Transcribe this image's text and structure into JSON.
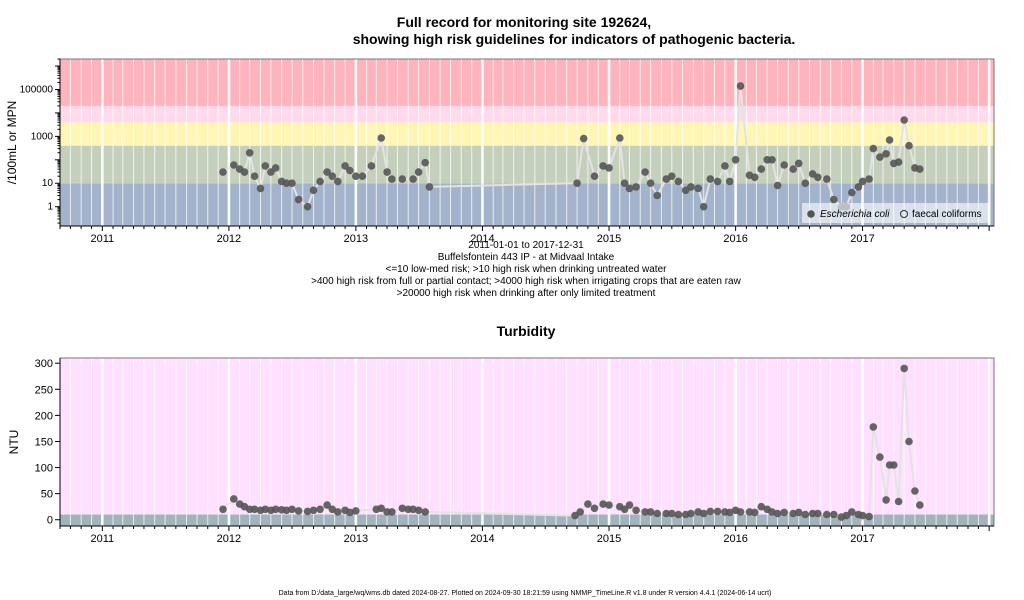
{
  "chart_data": [
    {
      "type": "scatter",
      "title": [
        "Full record for monitoring site 192624,",
        "showing high risk guidelines for indicators of pathogenic bacteria."
      ],
      "ylabel": "/100mL or MPN",
      "y_scale": "log",
      "x_range": [
        "2010-09-01",
        "2018-01-15"
      ],
      "ylim": [
        0.15,
        2000000
      ],
      "x_ticks": [
        "2011",
        "2012",
        "2013",
        "2014",
        "2015",
        "2016",
        "2017"
      ],
      "y_ticks": [
        "1",
        "10",
        "1000",
        "100000"
      ],
      "risk_bands": [
        {
          "from": 0.15,
          "to": 10,
          "color": "#a3b3cc"
        },
        {
          "from": 10,
          "to": 400,
          "color": "#c5d0bc"
        },
        {
          "from": 400,
          "to": 4000,
          "color": "#fff5b5"
        },
        {
          "from": 4000,
          "to": 20000,
          "color": "#ffd9ec"
        },
        {
          "from": 20000,
          "to": 2000000,
          "color": "#ffb3bd"
        }
      ],
      "legend": [
        "Escherichia coli",
        "faecal coliforms"
      ],
      "legend_placement": "bottom-right",
      "caption": [
        "2011-01-01 to 2017-12-31",
        "Buffelsfontein 443 IP - at Midvaal Intake",
        "<=10 low-med risk; >10 high risk when drinking untreated water",
        ">400 high risk from full or partial contact; >4000 high risk when irrigating crops that are eaten raw",
        ">20000 high risk when drinking after only limited treatment"
      ],
      "series": [
        {
          "name": "Escherichia coli",
          "color": "#555555",
          "points": [
            [
              "2011-12-15",
              30
            ],
            [
              "2012-01-15",
              60
            ],
            [
              "2012-02-01",
              40
            ],
            [
              "2012-02-15",
              30
            ],
            [
              "2012-03-01",
              200
            ],
            [
              "2012-03-15",
              20
            ],
            [
              "2012-04-01",
              6
            ],
            [
              "2012-04-15",
              55
            ],
            [
              "2012-05-01",
              30
            ],
            [
              "2012-05-15",
              45
            ],
            [
              "2012-06-01",
              12
            ],
            [
              "2012-06-15",
              10
            ],
            [
              "2012-07-01",
              10
            ],
            [
              "2012-07-20",
              2
            ],
            [
              "2012-08-15",
              1
            ],
            [
              "2012-09-01",
              5
            ],
            [
              "2012-09-20",
              12
            ],
            [
              "2012-10-10",
              30
            ],
            [
              "2012-10-25",
              20
            ],
            [
              "2012-11-10",
              12
            ],
            [
              "2012-12-01",
              55
            ],
            [
              "2012-12-15",
              35
            ],
            [
              "2013-01-01",
              20
            ],
            [
              "2013-01-20",
              20
            ],
            [
              "2013-02-15",
              55
            ],
            [
              "2013-03-15",
              850
            ],
            [
              "2013-04-01",
              30
            ],
            [
              "2013-04-15",
              15
            ],
            [
              "2013-05-15",
              15
            ],
            [
              "2013-06-15",
              15
            ],
            [
              "2013-07-01",
              30
            ],
            [
              "2013-07-20",
              75
            ],
            [
              "2013-08-01",
              7
            ],
            [
              "2014-10-01",
              10
            ],
            [
              "2014-10-20",
              800
            ],
            [
              "2014-11-20",
              20
            ],
            [
              "2014-12-15",
              55
            ],
            [
              "2015-01-01",
              45
            ],
            [
              "2015-02-01",
              850
            ],
            [
              "2015-02-15",
              10
            ],
            [
              "2015-03-01",
              6
            ],
            [
              "2015-03-20",
              7
            ],
            [
              "2015-04-15",
              30
            ],
            [
              "2015-05-01",
              10
            ],
            [
              "2015-05-20",
              3
            ],
            [
              "2015-06-15",
              15
            ],
            [
              "2015-07-01",
              20
            ],
            [
              "2015-07-20",
              12
            ],
            [
              "2015-08-10",
              5
            ],
            [
              "2015-08-25",
              7
            ],
            [
              "2015-09-15",
              6
            ],
            [
              "2015-10-01",
              1
            ],
            [
              "2015-10-20",
              15
            ],
            [
              "2015-11-10",
              12
            ],
            [
              "2015-12-01",
              55
            ],
            [
              "2015-12-15",
              12
            ],
            [
              "2016-01-01",
              100
            ],
            [
              "2016-01-15",
              140000
            ],
            [
              "2016-02-10",
              22
            ],
            [
              "2016-02-25",
              18
            ],
            [
              "2016-03-15",
              40
            ],
            [
              "2016-04-01",
              100
            ],
            [
              "2016-04-15",
              100
            ],
            [
              "2016-05-01",
              8
            ],
            [
              "2016-05-20",
              60
            ],
            [
              "2016-06-15",
              40
            ],
            [
              "2016-07-01",
              70
            ],
            [
              "2016-07-20",
              10
            ],
            [
              "2016-08-10",
              25
            ],
            [
              "2016-08-25",
              18
            ],
            [
              "2016-09-20",
              15
            ],
            [
              "2016-10-10",
              2
            ],
            [
              "2016-11-01",
              1
            ],
            [
              "2016-11-15",
              1
            ],
            [
              "2016-12-01",
              4
            ],
            [
              "2016-12-20",
              7
            ],
            [
              "2017-01-01",
              12
            ],
            [
              "2017-01-20",
              15
            ],
            [
              "2017-02-01",
              300
            ],
            [
              "2017-02-20",
              130
            ],
            [
              "2017-03-10",
              180
            ],
            [
              "2017-03-20",
              700
            ],
            [
              "2017-04-01",
              70
            ],
            [
              "2017-04-15",
              80
            ],
            [
              "2017-05-01",
              5000
            ],
            [
              "2017-05-15",
              400
            ],
            [
              "2017-06-01",
              45
            ],
            [
              "2017-06-15",
              40
            ]
          ]
        }
      ]
    },
    {
      "type": "scatter",
      "title": "Turbidity",
      "ylabel": "NTU",
      "x_range": [
        "2010-09-01",
        "2018-01-15"
      ],
      "ylim": [
        -12,
        310
      ],
      "x_ticks": [
        "2011",
        "2012",
        "2013",
        "2014",
        "2015",
        "2016",
        "2017"
      ],
      "y_ticks": [
        0,
        50,
        100,
        150,
        200,
        250,
        300
      ],
      "bands": [
        {
          "from": -12,
          "to": 10,
          "color": "#a3b3bc"
        },
        {
          "from": 10,
          "to": 310,
          "color": "#ffe0ff"
        }
      ],
      "series": [
        {
          "name": "",
          "color": "#555555",
          "points": [
            [
              "2011-12-15",
              20
            ],
            [
              "2012-01-15",
              40
            ],
            [
              "2012-02-01",
              30
            ],
            [
              "2012-02-15",
              25
            ],
            [
              "2012-03-01",
              20
            ],
            [
              "2012-03-15",
              20
            ],
            [
              "2012-04-01",
              18
            ],
            [
              "2012-04-15",
              20
            ],
            [
              "2012-05-01",
              18
            ],
            [
              "2012-05-15",
              20
            ],
            [
              "2012-06-01",
              19
            ],
            [
              "2012-06-15",
              18
            ],
            [
              "2012-07-01",
              20
            ],
            [
              "2012-07-20",
              17
            ],
            [
              "2012-08-15",
              16
            ],
            [
              "2012-09-01",
              18
            ],
            [
              "2012-09-20",
              20
            ],
            [
              "2012-10-10",
              28
            ],
            [
              "2012-10-25",
              20
            ],
            [
              "2012-11-10",
              15
            ],
            [
              "2012-12-01",
              18
            ],
            [
              "2012-12-15",
              14
            ],
            [
              "2013-01-01",
              17
            ],
            [
              "2013-03-01",
              20
            ],
            [
              "2013-03-15",
              22
            ],
            [
              "2013-04-01",
              15
            ],
            [
              "2013-04-15",
              15
            ],
            [
              "2013-05-15",
              22
            ],
            [
              "2013-06-01",
              20
            ],
            [
              "2013-06-15",
              20
            ],
            [
              "2013-07-01",
              18
            ],
            [
              "2013-07-20",
              15
            ],
            [
              "2014-09-25",
              8
            ],
            [
              "2014-10-10",
              15
            ],
            [
              "2014-11-01",
              30
            ],
            [
              "2014-11-20",
              22
            ],
            [
              "2014-12-15",
              30
            ],
            [
              "2015-01-01",
              28
            ],
            [
              "2015-02-01",
              25
            ],
            [
              "2015-02-15",
              20
            ],
            [
              "2015-03-01",
              28
            ],
            [
              "2015-03-20",
              18
            ],
            [
              "2015-04-15",
              15
            ],
            [
              "2015-05-01",
              15
            ],
            [
              "2015-05-20",
              12
            ],
            [
              "2015-06-15",
              12
            ],
            [
              "2015-07-01",
              12
            ],
            [
              "2015-07-20",
              10
            ],
            [
              "2015-08-10",
              10
            ],
            [
              "2015-08-25",
              12
            ],
            [
              "2015-09-15",
              15
            ],
            [
              "2015-10-01",
              12
            ],
            [
              "2015-10-20",
              16
            ],
            [
              "2015-11-10",
              16
            ],
            [
              "2015-12-01",
              15
            ],
            [
              "2015-12-15",
              14
            ],
            [
              "2016-01-01",
              18
            ],
            [
              "2016-01-15",
              15
            ],
            [
              "2016-02-10",
              15
            ],
            [
              "2016-02-25",
              14
            ],
            [
              "2016-03-15",
              25
            ],
            [
              "2016-04-01",
              20
            ],
            [
              "2016-04-15",
              15
            ],
            [
              "2016-05-01",
              12
            ],
            [
              "2016-05-20",
              14
            ],
            [
              "2016-06-15",
              12
            ],
            [
              "2016-07-01",
              14
            ],
            [
              "2016-07-20",
              10
            ],
            [
              "2016-08-10",
              12
            ],
            [
              "2016-08-25",
              12
            ],
            [
              "2016-09-20",
              10
            ],
            [
              "2016-10-10",
              10
            ],
            [
              "2016-11-01",
              5
            ],
            [
              "2016-11-15",
              8
            ],
            [
              "2016-12-01",
              15
            ],
            [
              "2016-12-20",
              10
            ],
            [
              "2017-01-01",
              8
            ],
            [
              "2017-01-20",
              6
            ],
            [
              "2017-02-01",
              178
            ],
            [
              "2017-02-20",
              120
            ],
            [
              "2017-03-10",
              38
            ],
            [
              "2017-03-20",
              105
            ],
            [
              "2017-04-01",
              105
            ],
            [
              "2017-04-15",
              35
            ],
            [
              "2017-05-01",
              290
            ],
            [
              "2017-05-15",
              150
            ],
            [
              "2017-06-01",
              55
            ],
            [
              "2017-06-15",
              28
            ]
          ]
        }
      ]
    }
  ],
  "footer": "Data from D:/data_large/wq/wms.db dated 2024-08-27. Plotted on 2024-09-30 18:21:59 using NMMP_TimeLine.R v1.8 under R version 4.4.1 (2024-06-14 ucrt)"
}
